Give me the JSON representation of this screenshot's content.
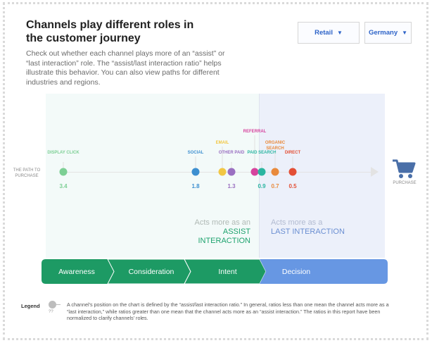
{
  "header": {
    "title": "Channels play different roles in the customer journey",
    "description": "Check out whether each channel plays more of an “assist” or “last interaction” role. The “assist/last interaction ratio” helps illustrate this behavior. You can also view paths for different industries and regions."
  },
  "filters": {
    "industry": "Retail",
    "region": "Germany"
  },
  "path": {
    "start_label": "THE PATH TO PURCHASE",
    "end_label": "PURCHASE",
    "cart_icon": "shopping-cart-icon"
  },
  "channels": [
    {
      "name": "DISPLAY CLICK",
      "ratio": 3.4,
      "ratio_label": "3.4",
      "color": "#7ccf94"
    },
    {
      "name": "SOCIAL",
      "ratio": 1.8,
      "ratio_label": "1.8",
      "color": "#3d8fd0"
    },
    {
      "name": "EMAIL",
      "ratio": 1.4,
      "ratio_label": "",
      "color": "#f2c744"
    },
    {
      "name": "OTHER PAID",
      "ratio": 1.3,
      "ratio_label": "1.3",
      "color": "#9a6fc1"
    },
    {
      "name": "REFERRAL",
      "ratio": 1.0,
      "ratio_label": "",
      "color": "#d6449e"
    },
    {
      "name": "PAID SEARCH",
      "ratio": 0.9,
      "ratio_label": "0.9",
      "color": "#2bb5a1"
    },
    {
      "name": "ORGANIC SEARCH",
      "ratio": 0.7,
      "ratio_label": "0.7",
      "color": "#e98a3c"
    },
    {
      "name": "DIRECT",
      "ratio": 0.5,
      "ratio_label": "0.5",
      "color": "#e34f35"
    }
  ],
  "zones": {
    "assist": {
      "prefix": "Acts more as an",
      "label": "ASSIST INTERACTION"
    },
    "last": {
      "prefix": "Acts more as a",
      "label": "LAST INTERACTION"
    }
  },
  "stages": [
    {
      "label": "Awareness",
      "color": "#1d9a64"
    },
    {
      "label": "Consideration",
      "color": "#1d9a64"
    },
    {
      "label": "Intent",
      "color": "#1d9a64"
    },
    {
      "label": "Decision",
      "color": "#6797e3"
    }
  ],
  "legend": {
    "title": "Legend",
    "symbol": "??",
    "text": "A channel's position on the chart is defined by the “assist/last interaction ratio.” In general, ratios less than one mean the channel acts more as a “last interaction,” while ratios greater than one mean that the channel acts more as an “assist interaction.” The ratios in this report have been normalized to clarify channels' roles."
  }
}
